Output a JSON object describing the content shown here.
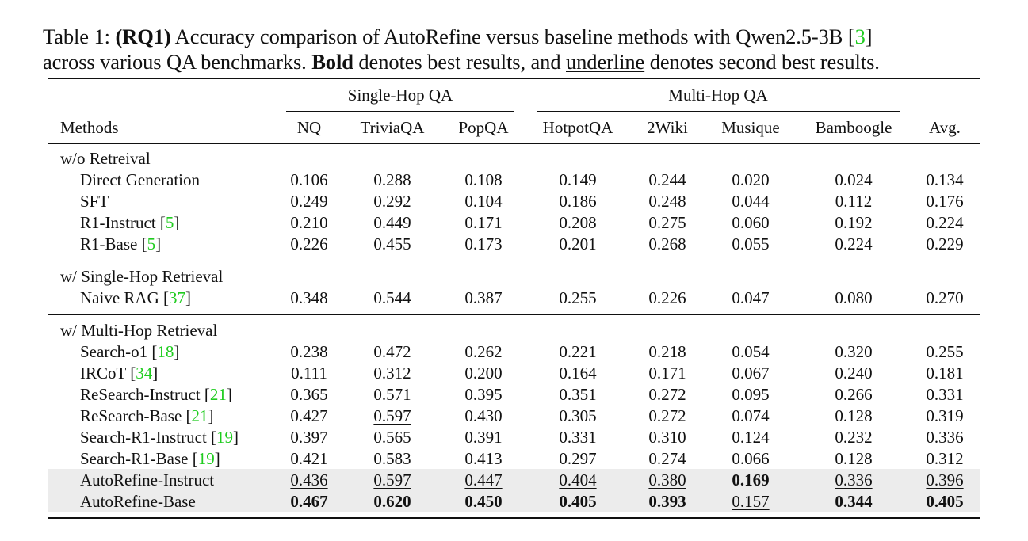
{
  "caption": {
    "label": "Table 1:",
    "rq": "(RQ1)",
    "line1_text": " Accuracy comparison of AutoRefine versus baseline methods with Qwen2.5-3B [",
    "line1_cite": "3",
    "line1_end": "]",
    "line2_text_a": "across various QA benchmarks. ",
    "bold_word": "Bold",
    "line2_text_b": " denotes best results, and ",
    "underline_word": "underline",
    "line2_text_c": " denotes second best results."
  },
  "header": {
    "group_single": "Single-Hop QA",
    "group_multi": "Multi-Hop QA",
    "methods": "Methods",
    "columns": [
      "NQ",
      "TriviaQA",
      "PopQA",
      "HotpotQA",
      "2Wiki",
      "Musique",
      "Bamboogle",
      "Avg."
    ]
  },
  "groups": [
    {
      "name": "w/o Retreival",
      "rows": [
        {
          "method": "Direct Generation",
          "cite": "",
          "values": [
            "0.106",
            "0.288",
            "0.108",
            "0.149",
            "0.244",
            "0.020",
            "0.024",
            "0.134"
          ],
          "bold": [],
          "underline": []
        },
        {
          "method": "SFT",
          "cite": "",
          "values": [
            "0.249",
            "0.292",
            "0.104",
            "0.186",
            "0.248",
            "0.044",
            "0.112",
            "0.176"
          ],
          "bold": [],
          "underline": []
        },
        {
          "method": "R1-Instruct",
          "cite": "5",
          "values": [
            "0.210",
            "0.449",
            "0.171",
            "0.208",
            "0.275",
            "0.060",
            "0.192",
            "0.224"
          ],
          "bold": [],
          "underline": []
        },
        {
          "method": "R1-Base",
          "cite": "5",
          "values": [
            "0.226",
            "0.455",
            "0.173",
            "0.201",
            "0.268",
            "0.055",
            "0.224",
            "0.229"
          ],
          "bold": [],
          "underline": []
        }
      ]
    },
    {
      "name": "w/ Single-Hop Retrieval",
      "rows": [
        {
          "method": "Naive RAG",
          "cite": "37",
          "values": [
            "0.348",
            "0.544",
            "0.387",
            "0.255",
            "0.226",
            "0.047",
            "0.080",
            "0.270"
          ],
          "bold": [],
          "underline": []
        }
      ]
    },
    {
      "name": "w/ Multi-Hop Retrieval",
      "rows": [
        {
          "method": "Search-o1",
          "cite": "18",
          "values": [
            "0.238",
            "0.472",
            "0.262",
            "0.221",
            "0.218",
            "0.054",
            "0.320",
            "0.255"
          ],
          "bold": [],
          "underline": []
        },
        {
          "method": "IRCoT",
          "cite": "34",
          "values": [
            "0.111",
            "0.312",
            "0.200",
            "0.164",
            "0.171",
            "0.067",
            "0.240",
            "0.181"
          ],
          "bold": [],
          "underline": []
        },
        {
          "method": "ReSearch-Instruct",
          "cite": "21",
          "values": [
            "0.365",
            "0.571",
            "0.395",
            "0.351",
            "0.272",
            "0.095",
            "0.266",
            "0.331"
          ],
          "bold": [],
          "underline": []
        },
        {
          "method": "ReSearch-Base",
          "cite": "21",
          "values": [
            "0.427",
            "0.597",
            "0.430",
            "0.305",
            "0.272",
            "0.074",
            "0.128",
            "0.319"
          ],
          "bold": [],
          "underline": [
            1
          ]
        },
        {
          "method": "Search-R1-Instruct",
          "cite": "19",
          "values": [
            "0.397",
            "0.565",
            "0.391",
            "0.331",
            "0.310",
            "0.124",
            "0.232",
            "0.336"
          ],
          "bold": [],
          "underline": []
        },
        {
          "method": "Search-R1-Base",
          "cite": "19",
          "values": [
            "0.421",
            "0.583",
            "0.413",
            "0.297",
            "0.274",
            "0.066",
            "0.128",
            "0.312"
          ],
          "bold": [],
          "underline": []
        },
        {
          "method": "AutoRefine-Instruct",
          "cite": "",
          "shaded": true,
          "values": [
            "0.436",
            "0.597",
            "0.447",
            "0.404",
            "0.380",
            "0.169",
            "0.336",
            "0.396"
          ],
          "bold": [
            5
          ],
          "underline": [
            0,
            1,
            2,
            3,
            4,
            6,
            7
          ]
        },
        {
          "method": "AutoRefine-Base",
          "cite": "",
          "shaded": true,
          "values": [
            "0.467",
            "0.620",
            "0.450",
            "0.405",
            "0.393",
            "0.157",
            "0.344",
            "0.405"
          ],
          "bold": [
            0,
            1,
            2,
            3,
            4,
            6,
            7
          ],
          "underline": [
            5
          ]
        }
      ]
    }
  ],
  "colors": {
    "cite": "#1fcc1f",
    "shade": "#ececec"
  }
}
